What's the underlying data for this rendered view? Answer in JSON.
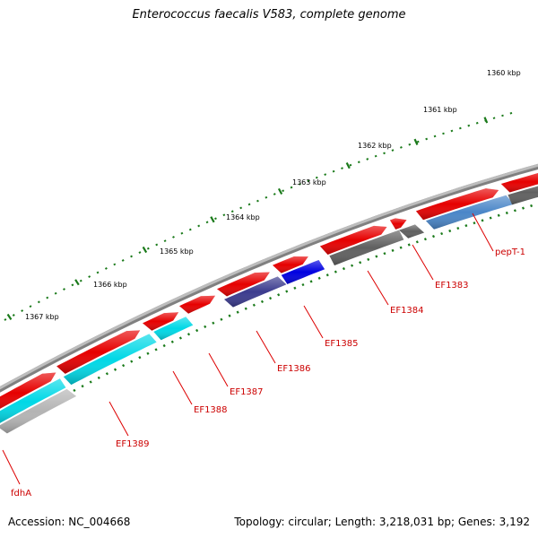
{
  "title": "Enterococcus faecalis V583, complete genome",
  "footer": {
    "accession": "Accession: NC_004668",
    "summary": "Topology: circular; Length: 3,218,031 bp; Genes: 3,192"
  },
  "colors": {
    "backbone": "#808080",
    "ticks": "#1a7a1a",
    "tick_text": "#000000",
    "label_text": "#cc0000",
    "leader": "#dd0000"
  },
  "scale_labels": [
    "1360 kbp",
    "1361 kbp",
    "1362 kbp",
    "1363 kbp",
    "1364 kbp",
    "1365 kbp",
    "1366 kbp",
    "1367 kbp"
  ],
  "genes": [
    {
      "name": "pepT-1",
      "color": "#4a86c8"
    },
    {
      "name": "EF1383",
      "color": "#606060"
    },
    {
      "name": "EF1384",
      "color": "#606060"
    },
    {
      "name": "EF1385",
      "color": "#0000e0"
    },
    {
      "name": "EF1386",
      "color": "#3b3b8e"
    },
    {
      "name": "EF1387",
      "color": "#00d8e6"
    },
    {
      "name": "EF1388",
      "color": "#00d8e6"
    },
    {
      "name": "EF1389",
      "color": "#00d8e6"
    },
    {
      "name": "fdhA",
      "color": "#b4b4b4"
    }
  ],
  "forward_features": {
    "color": "#e60000"
  }
}
